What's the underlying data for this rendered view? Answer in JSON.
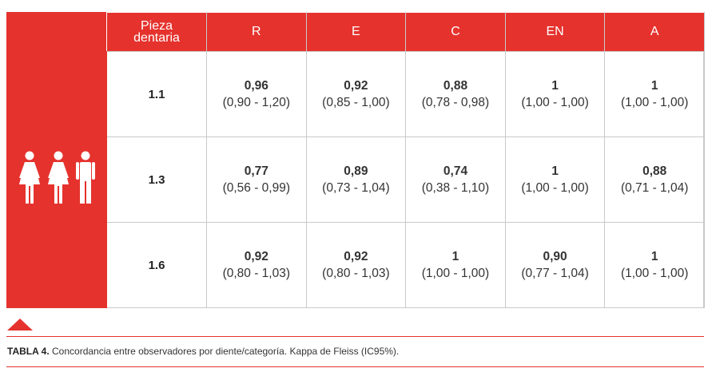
{
  "table": {
    "headers": {
      "tooth_line1": "Pieza",
      "tooth_line2": "dentaria",
      "cols": [
        "R",
        "E",
        "C",
        "EN",
        "A"
      ]
    },
    "rows": [
      {
        "tooth": "1.1",
        "cells": [
          {
            "kappa": "0,96",
            "ci": "(0,90 - 1,20)"
          },
          {
            "kappa": "0,92",
            "ci": "(0,85 - 1,00)"
          },
          {
            "kappa": "0,88",
            "ci": "(0,78 - 0,98)"
          },
          {
            "kappa": "1",
            "ci": "(1,00 - 1,00)"
          },
          {
            "kappa": "1",
            "ci": "(1,00 - 1,00)"
          }
        ]
      },
      {
        "tooth": "1.3",
        "cells": [
          {
            "kappa": "0,77",
            "ci": "(0,56 - 0,99)"
          },
          {
            "kappa": "0,89",
            "ci": "(0,73 - 1,04)"
          },
          {
            "kappa": "0,74",
            "ci": "(0,38 - 1,10)"
          },
          {
            "kappa": "1",
            "ci": "(1,00 - 1,00)"
          },
          {
            "kappa": "0,88",
            "ci": "(0,71 - 1,04)"
          }
        ]
      },
      {
        "tooth": "1.6",
        "cells": [
          {
            "kappa": "0,92",
            "ci": "(0,80 - 1,03)"
          },
          {
            "kappa": "0,92",
            "ci": "(0,80 - 1,03)"
          },
          {
            "kappa": "1",
            "ci": "(1,00 - 1,00)"
          },
          {
            "kappa": "0,90",
            "ci": "(0,77 - 1,04)"
          },
          {
            "kappa": "1",
            "ci": "(1,00 - 1,00)"
          }
        ]
      }
    ],
    "icon": "three-people-icon"
  },
  "caption": {
    "label": "TABLA 4.",
    "text": " Concordancia entre observadores por diente/categoría. Kappa de Fleiss (IC95%)."
  },
  "colors": {
    "accent": "#e5322d",
    "border": "#c9c9c9"
  }
}
